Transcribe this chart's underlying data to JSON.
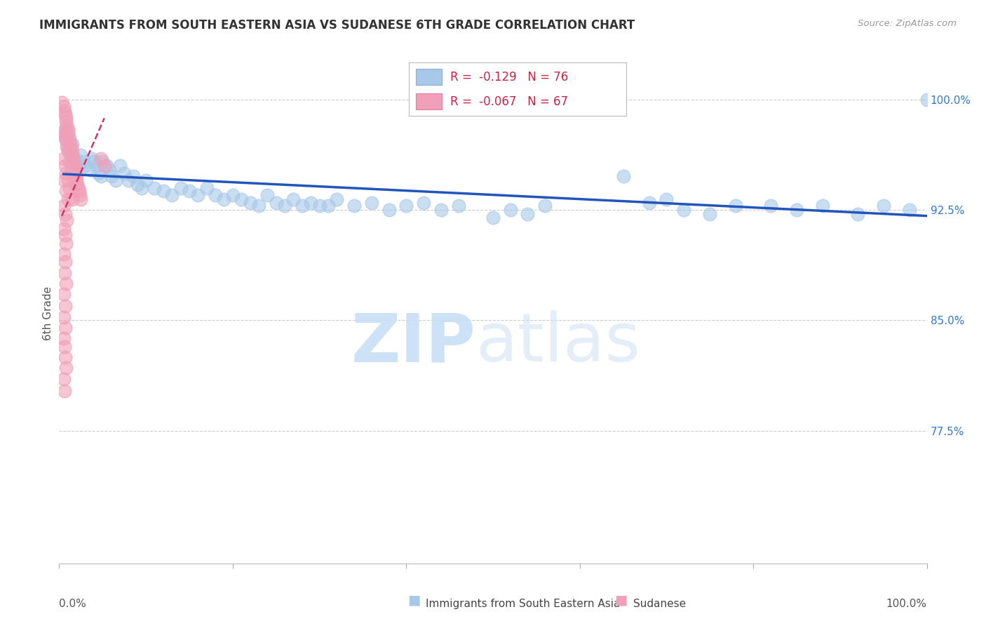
{
  "title": "IMMIGRANTS FROM SOUTH EASTERN ASIA VS SUDANESE 6TH GRADE CORRELATION CHART",
  "source": "Source: ZipAtlas.com",
  "ylabel": "6th Grade",
  "ytick_labels": [
    "100.0%",
    "92.5%",
    "85.0%",
    "77.5%"
  ],
  "ytick_values": [
    1.0,
    0.925,
    0.85,
    0.775
  ],
  "xlim": [
    0.0,
    1.0
  ],
  "ylim": [
    0.685,
    1.025
  ],
  "legend_blue_r": "-0.129",
  "legend_blue_n": "76",
  "legend_pink_r": "-0.067",
  "legend_pink_n": "67",
  "blue_color": "#a8c8e8",
  "pink_color": "#f0a0b8",
  "blue_line_color": "#2255bb",
  "pink_line_color": "#cc3366",
  "blue_scatter_x": [
    0.005,
    0.007,
    0.009,
    0.01,
    0.012,
    0.015,
    0.018,
    0.02,
    0.022,
    0.025,
    0.028,
    0.03,
    0.035,
    0.038,
    0.04,
    0.043,
    0.045,
    0.048,
    0.05,
    0.055,
    0.058,
    0.06,
    0.065,
    0.07,
    0.075,
    0.08,
    0.085,
    0.09,
    0.095,
    0.1,
    0.11,
    0.12,
    0.13,
    0.14,
    0.15,
    0.16,
    0.17,
    0.18,
    0.19,
    0.2,
    0.21,
    0.22,
    0.23,
    0.24,
    0.25,
    0.26,
    0.27,
    0.28,
    0.29,
    0.3,
    0.32,
    0.34,
    0.36,
    0.38,
    0.4,
    0.42,
    0.44,
    0.46,
    0.5,
    0.52,
    0.54,
    0.56,
    0.65,
    0.68,
    0.7,
    0.72,
    0.75,
    0.78,
    0.82,
    0.85,
    0.88,
    0.92,
    0.95,
    0.98,
    1.0,
    0.31
  ],
  "blue_scatter_y": [
    0.975,
    0.98,
    0.972,
    0.968,
    0.965,
    0.97,
    0.96,
    0.958,
    0.955,
    0.962,
    0.958,
    0.955,
    0.952,
    0.96,
    0.958,
    0.955,
    0.95,
    0.948,
    0.958,
    0.955,
    0.952,
    0.948,
    0.945,
    0.955,
    0.95,
    0.945,
    0.948,
    0.942,
    0.94,
    0.945,
    0.94,
    0.938,
    0.935,
    0.94,
    0.938,
    0.935,
    0.94,
    0.935,
    0.932,
    0.935,
    0.932,
    0.93,
    0.928,
    0.935,
    0.93,
    0.928,
    0.932,
    0.928,
    0.93,
    0.928,
    0.932,
    0.928,
    0.93,
    0.925,
    0.928,
    0.93,
    0.925,
    0.928,
    0.92,
    0.925,
    0.922,
    0.928,
    0.948,
    0.93,
    0.932,
    0.925,
    0.922,
    0.928,
    0.928,
    0.925,
    0.928,
    0.922,
    0.928,
    0.925,
    1.0,
    0.928
  ],
  "pink_scatter_x": [
    0.003,
    0.005,
    0.006,
    0.007,
    0.008,
    0.008,
    0.009,
    0.01,
    0.01,
    0.011,
    0.012,
    0.013,
    0.014,
    0.015,
    0.015,
    0.016,
    0.017,
    0.018,
    0.018,
    0.019,
    0.02,
    0.02,
    0.021,
    0.022,
    0.023,
    0.024,
    0.025,
    0.005,
    0.007,
    0.008,
    0.009,
    0.01,
    0.012,
    0.014,
    0.016,
    0.018,
    0.005,
    0.007,
    0.008,
    0.01,
    0.012,
    0.015,
    0.006,
    0.008,
    0.01,
    0.005,
    0.007,
    0.009,
    0.005,
    0.007,
    0.008,
    0.005,
    0.007,
    0.006,
    0.008,
    0.005,
    0.007,
    0.005,
    0.007,
    0.048,
    0.052,
    0.005,
    0.006,
    0.007,
    0.008,
    0.005,
    0.006
  ],
  "pink_scatter_y": [
    0.998,
    0.995,
    0.992,
    0.99,
    0.988,
    0.985,
    0.982,
    0.98,
    0.978,
    0.975,
    0.972,
    0.97,
    0.968,
    0.965,
    0.962,
    0.96,
    0.958,
    0.955,
    0.952,
    0.95,
    0.948,
    0.945,
    0.942,
    0.94,
    0.938,
    0.935,
    0.932,
    0.978,
    0.975,
    0.972,
    0.968,
    0.965,
    0.958,
    0.952,
    0.948,
    0.942,
    0.96,
    0.955,
    0.95,
    0.945,
    0.94,
    0.932,
    0.945,
    0.938,
    0.932,
    0.928,
    0.922,
    0.918,
    0.912,
    0.908,
    0.902,
    0.895,
    0.89,
    0.882,
    0.875,
    0.868,
    0.86,
    0.852,
    0.845,
    0.96,
    0.955,
    0.838,
    0.832,
    0.825,
    0.818,
    0.81,
    0.802
  ]
}
